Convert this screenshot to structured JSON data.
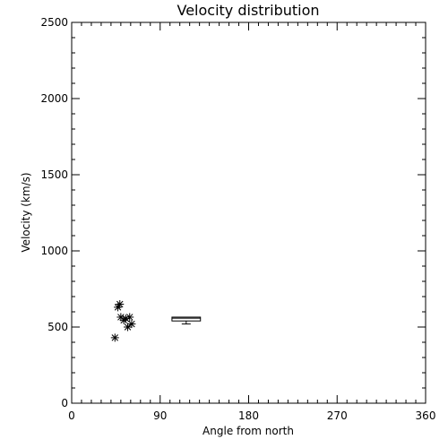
{
  "chart_data": {
    "type": "scatter",
    "title": "Velocity distribution",
    "xlabel": "Angle from north",
    "ylabel": "Velocity (km/s)",
    "xlim": [
      0,
      360
    ],
    "ylim": [
      0,
      2500
    ],
    "x_ticks": [
      0,
      90,
      180,
      270,
      360
    ],
    "y_ticks": [
      0,
      500,
      1000,
      1500,
      2000,
      2500
    ],
    "grid": false,
    "marker": "asterisk",
    "points": [
      {
        "x": 44,
        "y": 430
      },
      {
        "x": 47,
        "y": 630
      },
      {
        "x": 49,
        "y": 650
      },
      {
        "x": 50,
        "y": 565
      },
      {
        "x": 53,
        "y": 545
      },
      {
        "x": 55,
        "y": 555
      },
      {
        "x": 57,
        "y": 500
      },
      {
        "x": 59,
        "y": 565
      },
      {
        "x": 61,
        "y": 520
      }
    ],
    "boxplot": {
      "x_range": [
        102,
        131
      ],
      "q1": 540,
      "median": 558,
      "q3": 565,
      "whisker_low": 520,
      "whisker_high": 565
    }
  }
}
